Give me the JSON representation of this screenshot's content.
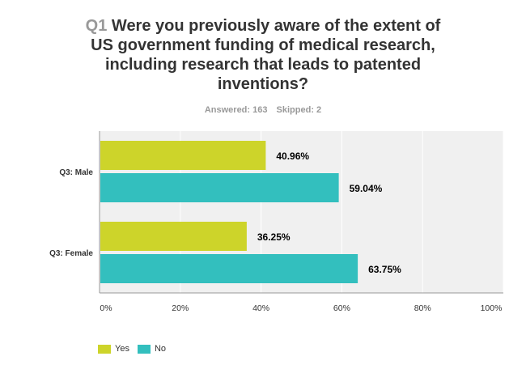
{
  "header": {
    "qnum": "Q1",
    "title": "Were you previously aware of the extent of US government funding of medical research, including research that leads to patented inventions?",
    "answered": "Answered: 163",
    "skipped": "Skipped: 2"
  },
  "chart_data": {
    "type": "bar",
    "orientation": "horizontal",
    "categories": [
      "Q3: Male",
      "Q3: Female"
    ],
    "series": [
      {
        "name": "Yes",
        "color": "#cdd42a",
        "values": [
          40.96,
          36.25
        ],
        "labels": [
          "40.96%",
          "36.25%"
        ]
      },
      {
        "name": "No",
        "color": "#33bfbe",
        "values": [
          59.04,
          63.75
        ],
        "labels": [
          "59.04%",
          "63.75%"
        ]
      }
    ],
    "xlim": [
      0,
      100
    ],
    "xticks": [
      "0%",
      "20%",
      "40%",
      "60%",
      "80%",
      "100%"
    ],
    "grid": true,
    "legend": "bottom-left"
  }
}
